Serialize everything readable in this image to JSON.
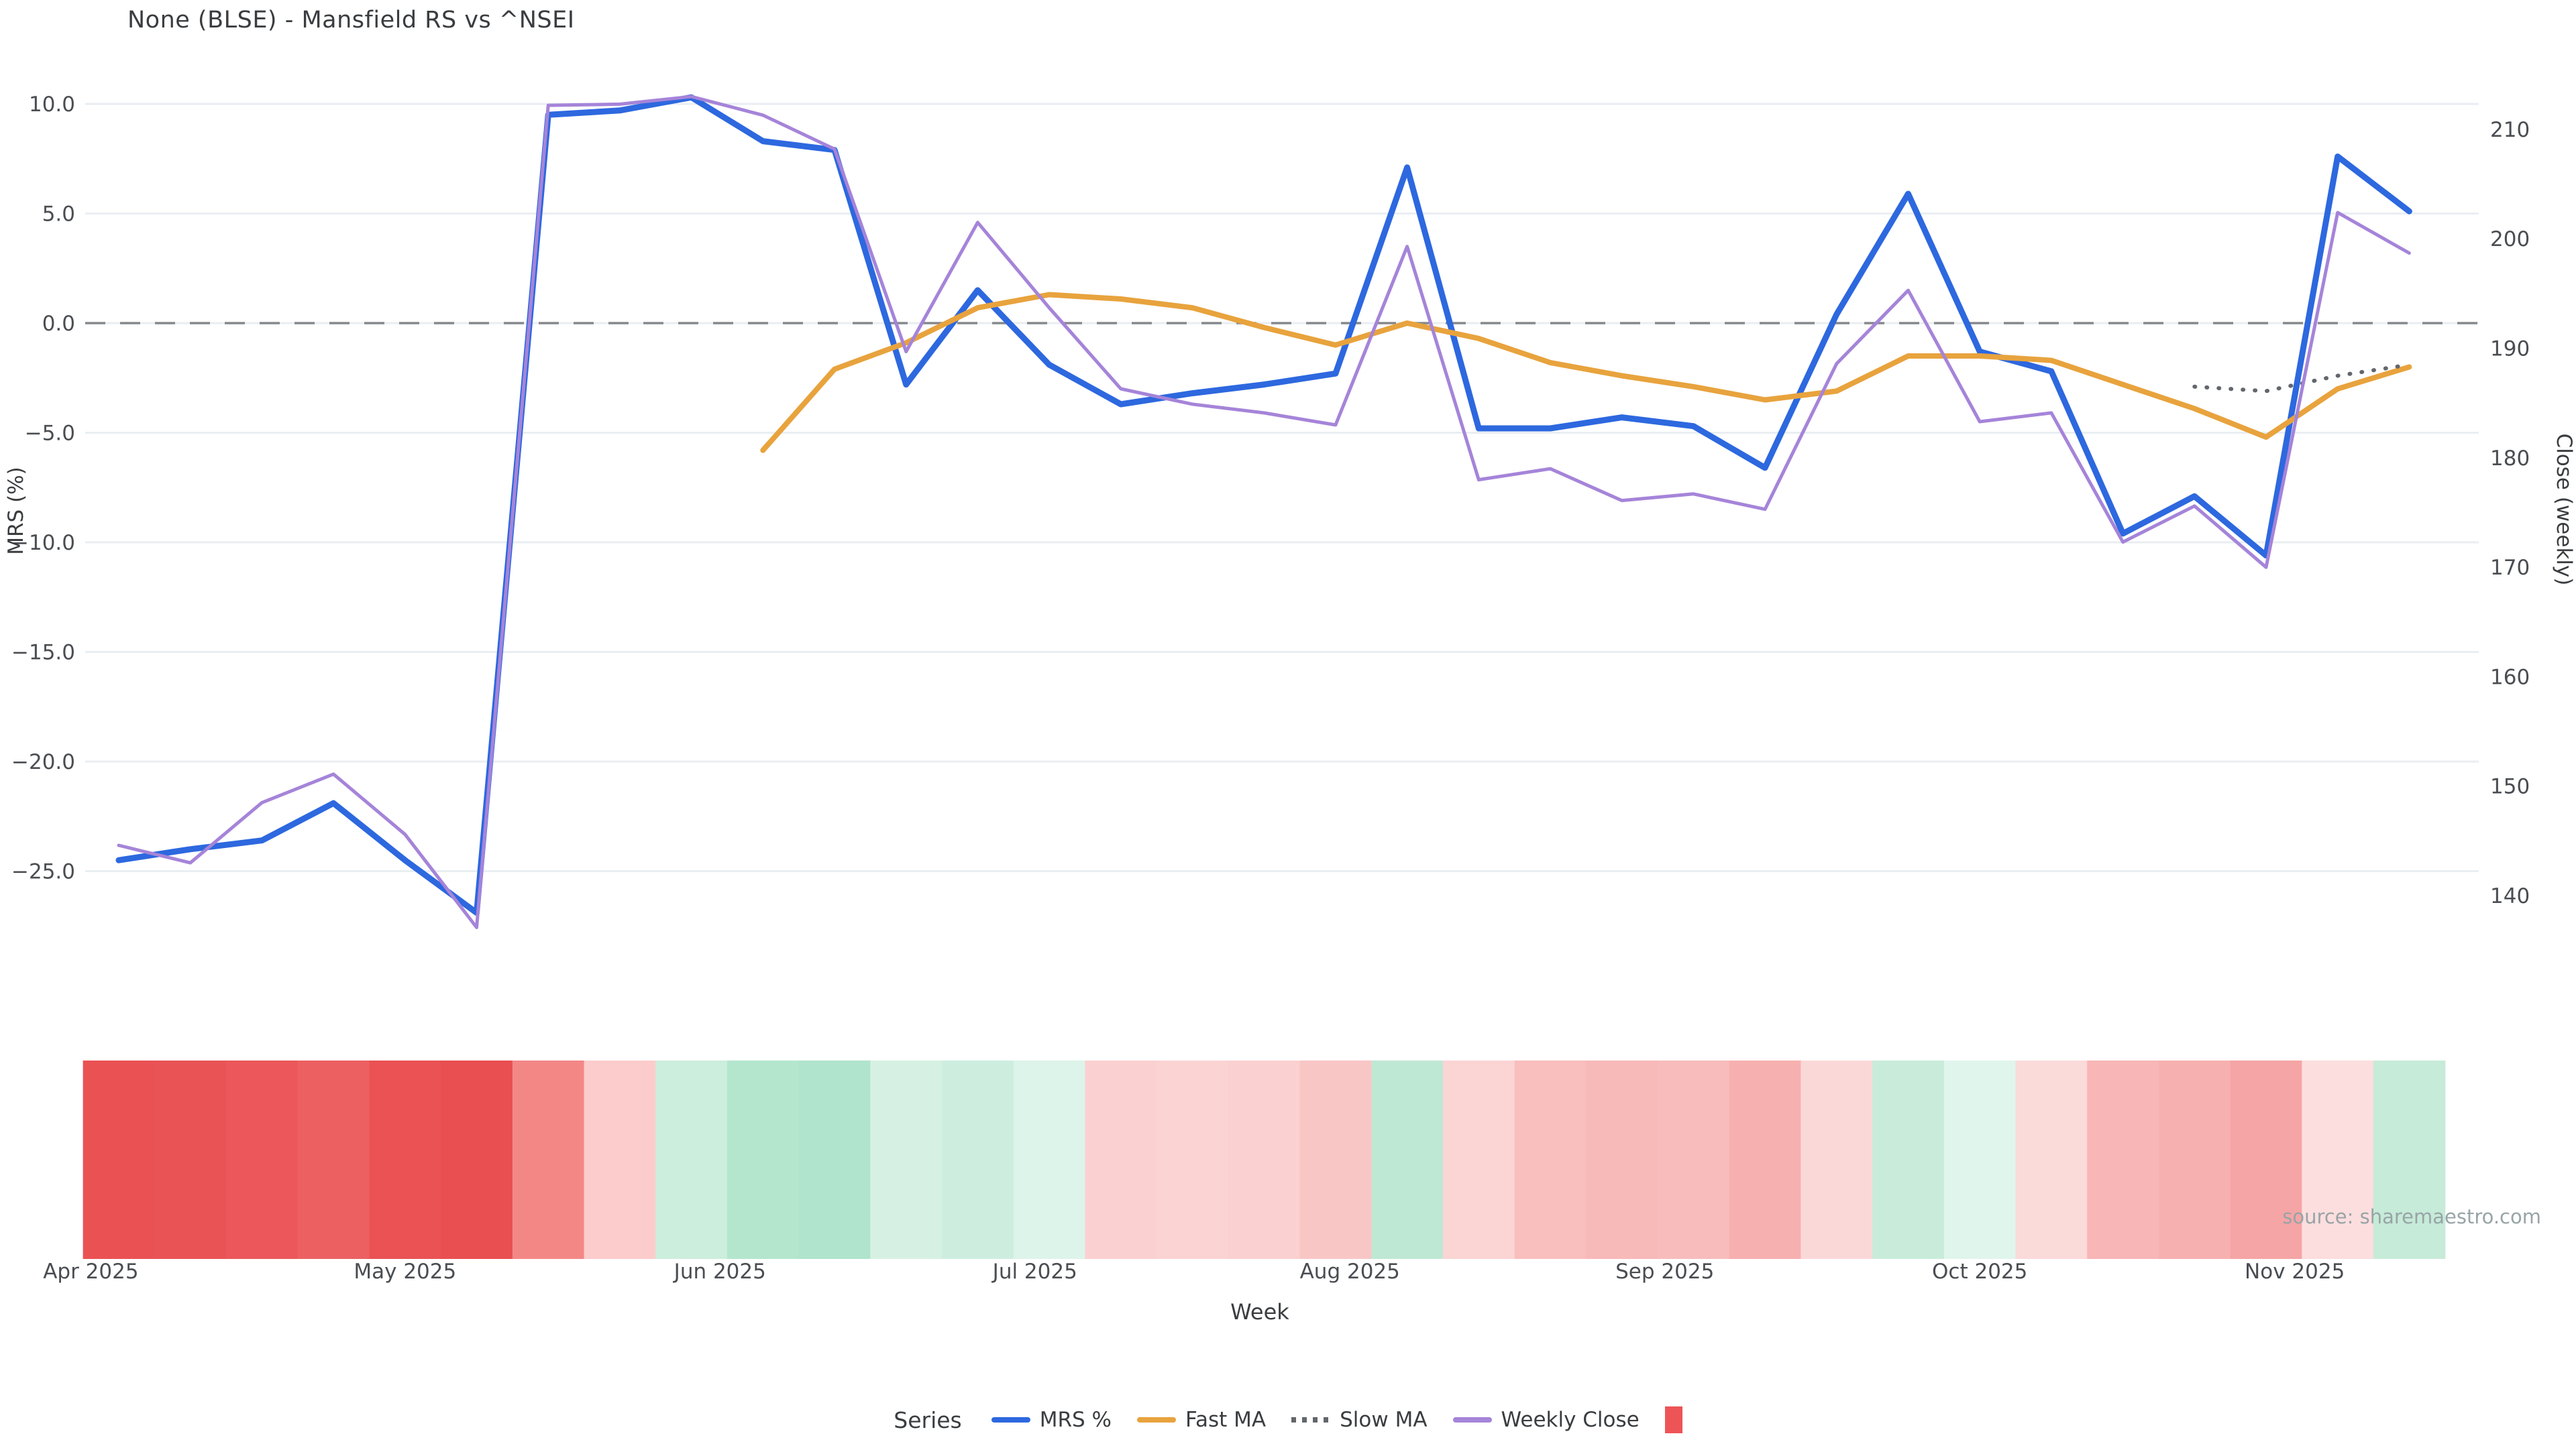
{
  "title": "None (BLSE) - Mansfield RS vs ^NSEI",
  "source_note": "source: sharemaestro.com",
  "axes": {
    "x_label": "Week",
    "y_left_label": "MRS (%)",
    "y_right_label": "Close (weekly)",
    "y_left_ticks": [
      10.0,
      5.0,
      0.0,
      -5.0,
      -10.0,
      -15.0,
      -20.0,
      -25.0
    ],
    "y_right_ticks": [
      210,
      200,
      190,
      180,
      170,
      160,
      150,
      140
    ]
  },
  "legend": {
    "title": "Series",
    "items": [
      {
        "label": "MRS %",
        "swatch": "line",
        "color": "#2d68df"
      },
      {
        "label": "Fast MA",
        "swatch": "line",
        "color": "#e8a33d"
      },
      {
        "label": "Slow MA",
        "swatch": "dotted-line",
        "color": "#63676c"
      },
      {
        "label": "Weekly Close",
        "swatch": "line",
        "color": "#a584d9"
      },
      {
        "label": "",
        "swatch": "square",
        "color": "#ee5456"
      }
    ]
  },
  "chart_data": {
    "type": "line",
    "x_unit": "weekly points, Apr 2025 - Nov 2025",
    "n_points": 33,
    "month_ticks": [
      {
        "label": "Apr 2025",
        "pos": -0.39
      },
      {
        "label": "May 2025",
        "pos": 4.0
      },
      {
        "label": "Jun 2025",
        "pos": 8.4
      },
      {
        "label": "Jul 2025",
        "pos": 12.8
      },
      {
        "label": "Aug 2025",
        "pos": 17.2
      },
      {
        "label": "Sep 2025",
        "pos": 21.6
      },
      {
        "label": "Oct 2025",
        "pos": 26.0
      },
      {
        "label": "Nov 2025",
        "pos": 30.4
      }
    ],
    "ylim_left": [
      -27.5,
      11.0
    ],
    "ylim_right": [
      137,
      214
    ],
    "grid": "horizontal-major-only",
    "zero_line": {
      "value": 0.0,
      "style": "dashed",
      "color": "#85888c"
    },
    "series": [
      {
        "name": "MRS %",
        "axis": "left",
        "color": "#2d68df",
        "style": "solid",
        "width": 9,
        "start": 0,
        "values": [
          -24.5,
          -24.0,
          -23.6,
          -21.9,
          -24.5,
          -26.9,
          9.5,
          9.7,
          10.3,
          8.3,
          7.9,
          -2.8,
          1.5,
          -1.9,
          -3.7,
          -3.2,
          -2.8,
          -2.3,
          7.1,
          -4.8,
          -4.8,
          -4.3,
          -4.7,
          -6.6,
          0.4,
          5.9,
          -1.3,
          -2.2,
          -9.6,
          -7.9,
          -10.6,
          7.6,
          5.1
        ]
      },
      {
        "name": "Fast MA",
        "axis": "left",
        "color": "#e8a33d",
        "style": "solid",
        "width": 8,
        "start": 9,
        "values": [
          -5.8,
          -2.1,
          -0.9,
          0.7,
          1.3,
          1.1,
          0.7,
          -0.2,
          -1.0,
          0.0,
          -0.7,
          -1.8,
          -2.4,
          -2.9,
          -3.5,
          -3.1,
          -1.5,
          -1.5,
          -1.7,
          -2.8,
          -3.9,
          -5.2,
          -3.0,
          -2.0
        ]
      },
      {
        "name": "Slow MA",
        "axis": "left",
        "color": "#63676c",
        "style": "dotted",
        "width": 6,
        "start": 29,
        "values": [
          -2.9,
          -3.1,
          -2.4,
          -1.9
        ]
      },
      {
        "name": "Weekly Close",
        "axis": "right",
        "color": "#a584d9",
        "style": "solid",
        "width": 5,
        "start": 0,
        "values": [
          144.6,
          143.0,
          148.5,
          151.1,
          145.6,
          137.1,
          212.2,
          212.3,
          213.0,
          211.3,
          208.2,
          189.7,
          201.5,
          193.7,
          186.3,
          184.9,
          184.1,
          183.0,
          199.3,
          178.0,
          179.0,
          176.1,
          176.7,
          175.3,
          188.6,
          195.3,
          183.3,
          184.1,
          172.3,
          175.6,
          170.0,
          202.4,
          198.7
        ]
      }
    ],
    "heatmap_strip": {
      "description": "one colored cell per week under the chart",
      "colors": [
        "#ea5153",
        "#ea5356",
        "#eb575a",
        "#ec6062",
        "#ea5254",
        "#e94f51",
        "#f38786",
        "#fccccc",
        "#cceedd",
        "#b4e6ce",
        "#b0e4cc",
        "#d6f1e3",
        "#cdeedf",
        "#ddf4ea",
        "#fbd0d0",
        "#fbd3d3",
        "#fad0d0",
        "#f9c6c6",
        "#bfe8d4",
        "#fbd4d4",
        "#f9bebe",
        "#f8b9b9",
        "#f8bcbc",
        "#f7b0b0",
        "#fbd8d8",
        "#c8ecd9",
        "#e0f5ec",
        "#fbdada",
        "#f8b6b6",
        "#f7b0b0",
        "#f5a5a5",
        "#fcdede",
        "#c6ebd8"
      ]
    }
  }
}
